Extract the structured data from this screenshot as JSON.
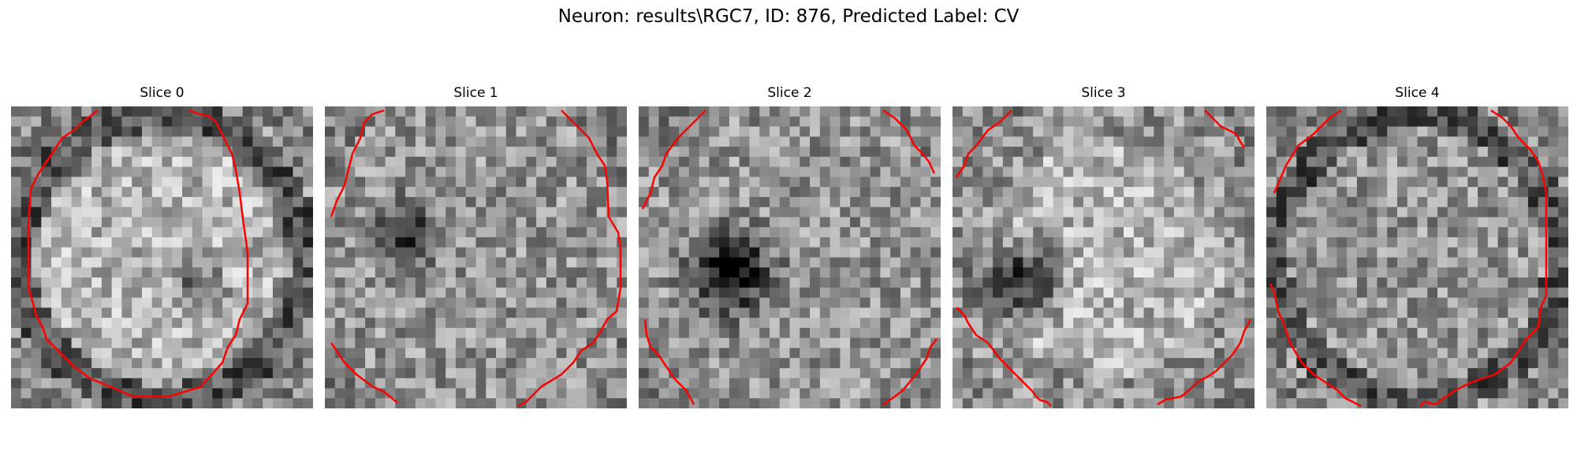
{
  "figure": {
    "title": "Neuron: results\\RGC7, ID: 876, Predicted Label: CV",
    "contour_color": "#ff0000"
  },
  "panels": [
    {
      "title": "Slice 0",
      "seed": 11,
      "dark_ring": true,
      "bright_disk": true,
      "dark_blob": [
        0.62,
        0.6,
        0.08,
        0.35
      ]
    },
    {
      "title": "Slice 1",
      "seed": 23,
      "dark_ring": false,
      "bright_disk": false,
      "dark_blob": [
        0.27,
        0.42,
        0.1,
        0.35
      ]
    },
    {
      "title": "Slice 2",
      "seed": 37,
      "dark_ring": false,
      "bright_disk": false,
      "dark_blob": [
        0.3,
        0.55,
        0.13,
        0.55
      ]
    },
    {
      "title": "Slice 3",
      "seed": 41,
      "dark_ring": false,
      "bright_disk": true,
      "dark_blob": [
        0.22,
        0.58,
        0.12,
        0.55
      ]
    },
    {
      "title": "Slice 4",
      "seed": 53,
      "dark_ring": true,
      "bright_disk": false,
      "dark_blob": [
        0.5,
        0.5,
        0.01,
        0.0
      ]
    }
  ]
}
